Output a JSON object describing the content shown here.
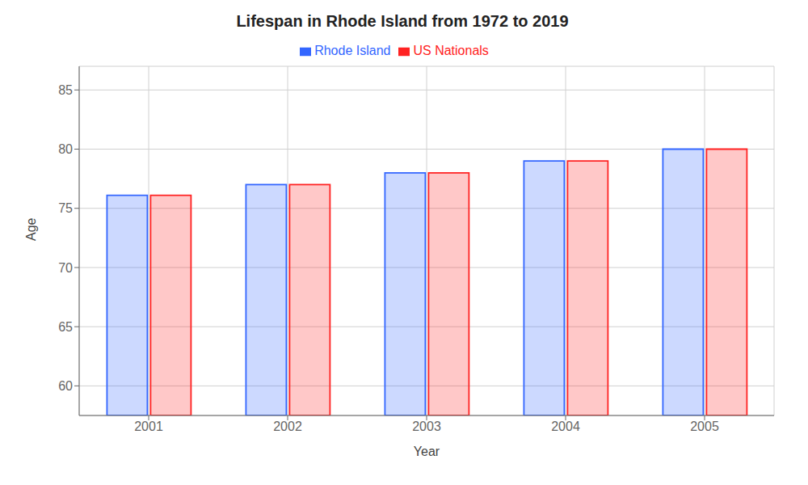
{
  "chart_data": {
    "type": "bar",
    "title": "Lifespan in Rhode Island from 1972 to 2019",
    "categories": [
      "2001",
      "2002",
      "2003",
      "2004",
      "2005"
    ],
    "series": [
      {
        "name": "Rhode Island",
        "color": "#3366ff",
        "values": [
          76.1,
          77.0,
          78.0,
          79.0,
          80.0
        ]
      },
      {
        "name": "US Nationals",
        "color": "#ff2222",
        "values": [
          76.1,
          77.0,
          78.0,
          79.0,
          80.0
        ]
      }
    ],
    "xlabel": "Year",
    "ylabel": "Age",
    "ylim": [
      57.5,
      87
    ],
    "yticks": [
      60,
      65,
      70,
      75,
      80,
      85
    ],
    "grid": true,
    "legend": "top"
  }
}
